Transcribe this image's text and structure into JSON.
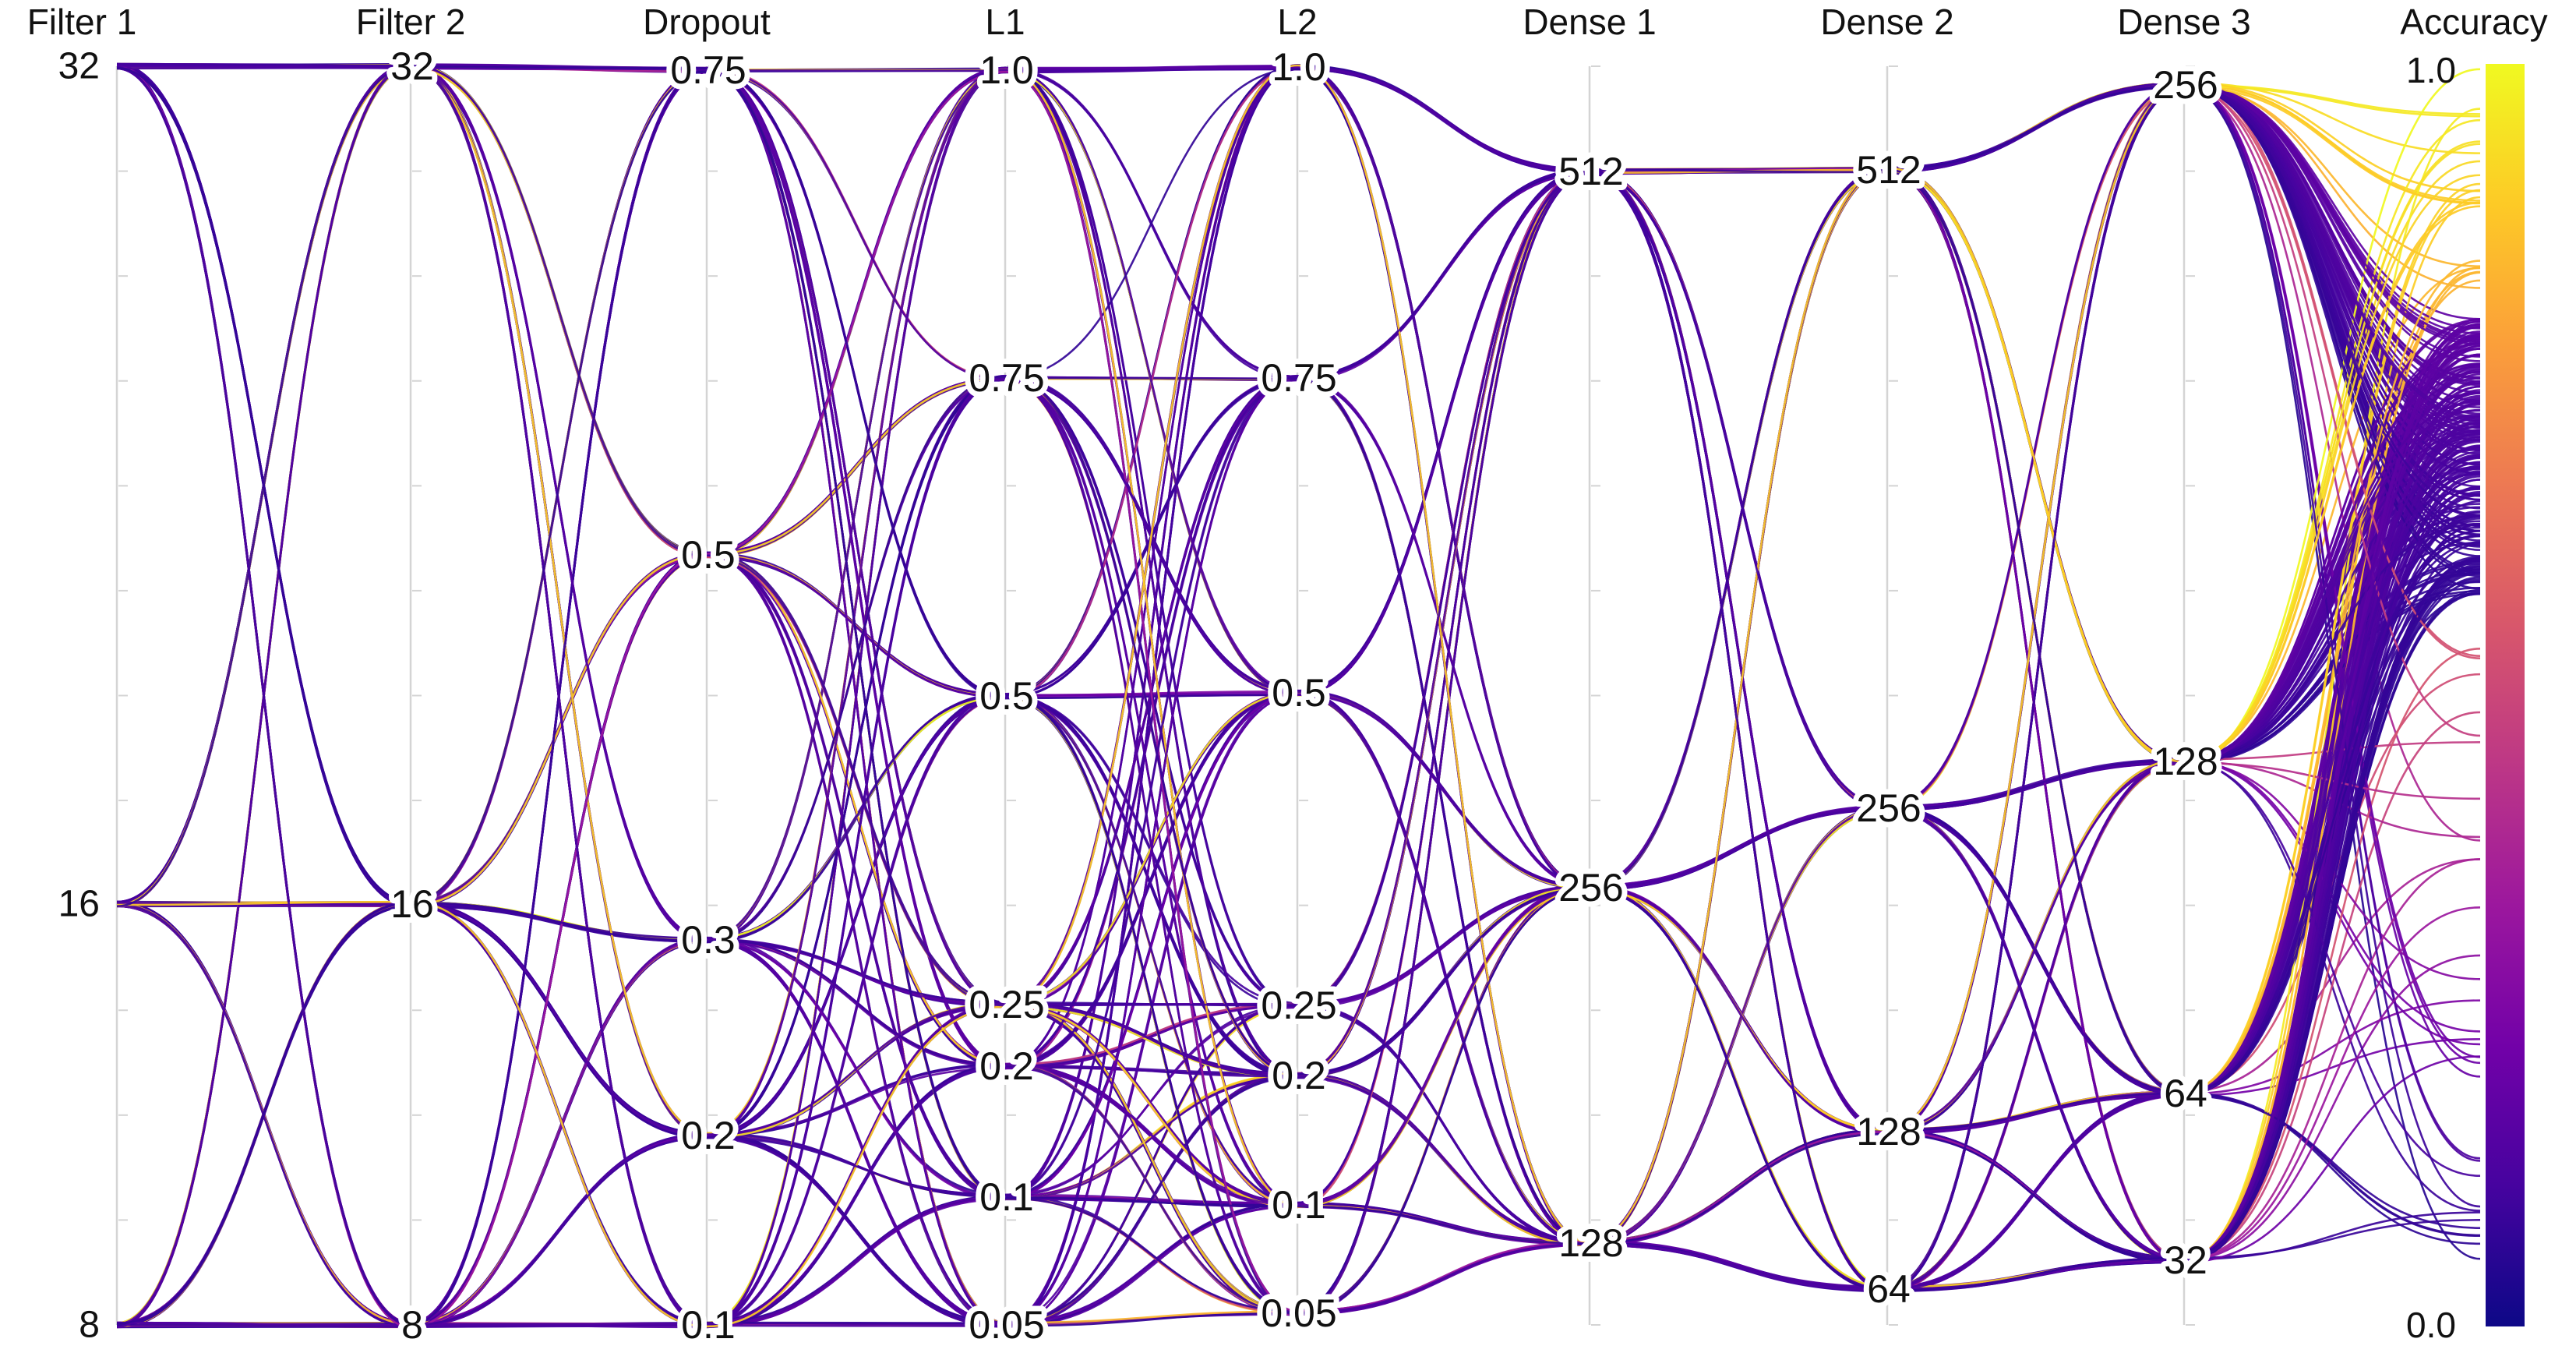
{
  "chart_data": {
    "type": "parallel_coordinates",
    "axes": [
      {
        "name": "Filter 1",
        "values": [
          8,
          16,
          32
        ],
        "labels": [
          "8",
          "16",
          "32"
        ]
      },
      {
        "name": "Filter 2",
        "values": [
          8,
          16,
          32
        ],
        "labels": [
          "8",
          "16",
          "32"
        ]
      },
      {
        "name": "Dropout",
        "values": [
          0.1,
          0.2,
          0.3,
          0.5,
          0.75
        ],
        "labels": [
          "0.1",
          "0.2",
          "0.3",
          "0.5",
          "0.75"
        ]
      },
      {
        "name": "L1",
        "values": [
          0.05,
          0.1,
          0.2,
          0.25,
          0.5,
          0.75,
          1.0
        ],
        "labels": [
          "0.05",
          "0.1",
          "0.2",
          "0.25",
          "0.5",
          "0.75",
          "1.0"
        ]
      },
      {
        "name": "L2",
        "values": [
          0.05,
          0.1,
          0.2,
          0.25,
          0.5,
          0.75,
          1.0
        ],
        "labels": [
          "0.05",
          "0.1",
          "0.2",
          "0.25",
          "0.5",
          "0.75",
          "1.0"
        ]
      },
      {
        "name": "Dense 1",
        "values": [
          128,
          256,
          512
        ],
        "labels": [
          "128",
          "256",
          "512"
        ]
      },
      {
        "name": "Dense 2",
        "values": [
          64,
          128,
          256,
          512
        ],
        "labels": [
          "64",
          "128",
          "256",
          "512"
        ]
      },
      {
        "name": "Dense 3",
        "values": [
          32,
          64,
          128,
          256
        ],
        "labels": [
          "32",
          "64",
          "128",
          "256"
        ]
      },
      {
        "name": "Accuracy",
        "values": [
          0.0,
          1.0
        ],
        "labels": [
          "0.0",
          "1.0"
        ]
      }
    ],
    "color_axis": "Accuracy",
    "color_range": [
      0.0,
      1.0
    ],
    "colorscale": [
      "#0d0887",
      "#46039f",
      "#7201a8",
      "#9c179e",
      "#bd3786",
      "#d8576b",
      "#ed7953",
      "#fb9f3a",
      "#fdca26",
      "#f0f921"
    ]
  }
}
